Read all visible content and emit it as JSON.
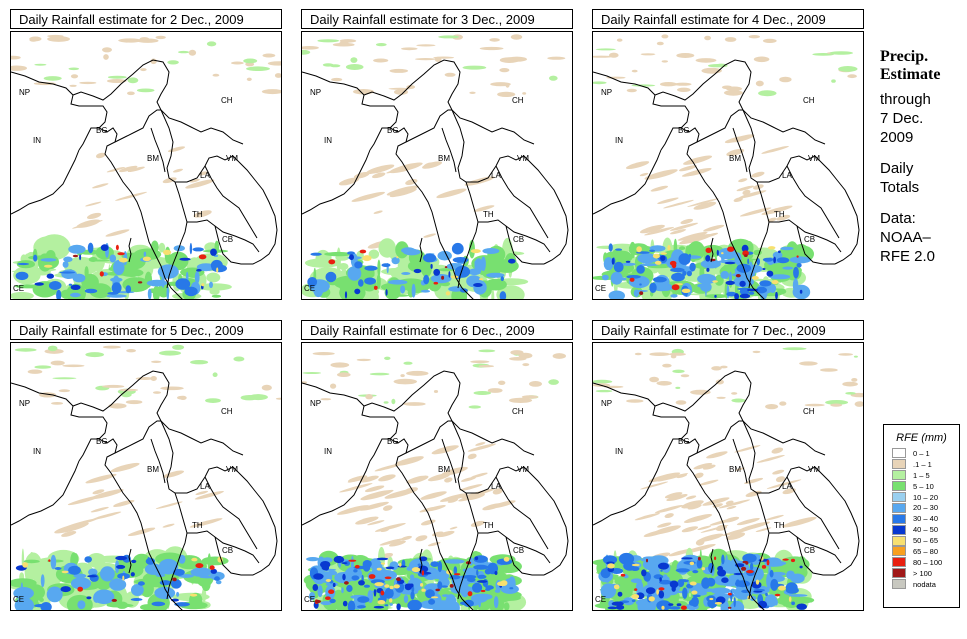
{
  "panels": [
    {
      "title": "Daily Rainfall estimate for  2 Dec., 2009",
      "intensity": 1
    },
    {
      "title": "Daily Rainfall estimate for  3 Dec., 2009",
      "intensity": 1
    },
    {
      "title": "Daily Rainfall estimate for  4 Dec., 2009",
      "intensity": 2
    },
    {
      "title": "Daily Rainfall estimate for  5 Dec., 2009",
      "intensity": 1
    },
    {
      "title": "Daily Rainfall estimate for  6 Dec., 2009",
      "intensity": 3
    },
    {
      "title": "Daily Rainfall estimate for  7 Dec., 2009",
      "intensity": 3
    }
  ],
  "map_labels": [
    "NP",
    "CH",
    "IN",
    "BG",
    "BM",
    "VM",
    "LA",
    "TH",
    "CB",
    "CE"
  ],
  "side": {
    "title_line1": "Precip.",
    "title_line2": "Estimate",
    "through": "through",
    "date_line1": "7 Dec.",
    "date_line2": "2009",
    "daily_line1": "Daily",
    "daily_line2": "Totals",
    "data_line1": "Data:",
    "data_line2": "NOAA–",
    "data_line3": "RFE 2.0"
  },
  "legend": {
    "title": "RFE (mm)",
    "items": [
      {
        "label": "0 – 1",
        "color": "#ffffff"
      },
      {
        "label": ".1 – 1",
        "color": "#e8d4b8"
      },
      {
        "label": "1 – 5",
        "color": "#b4f0a0"
      },
      {
        "label": "5 – 10",
        "color": "#78e070"
      },
      {
        "label": "10 – 20",
        "color": "#9ad0f0"
      },
      {
        "label": "20 – 30",
        "color": "#58a8f0"
      },
      {
        "label": "30 – 40",
        "color": "#2878e8"
      },
      {
        "label": "40 – 50",
        "color": "#0838d0"
      },
      {
        "label": "50 – 65",
        "color": "#f8e070"
      },
      {
        "label": "65 – 80",
        "color": "#f8a020"
      },
      {
        "label": "80 – 100",
        "color": "#e82010"
      },
      {
        "label": "> 100",
        "color": "#a01818"
      },
      {
        "label": "nodata",
        "color": "#c8c8c0"
      }
    ]
  }
}
